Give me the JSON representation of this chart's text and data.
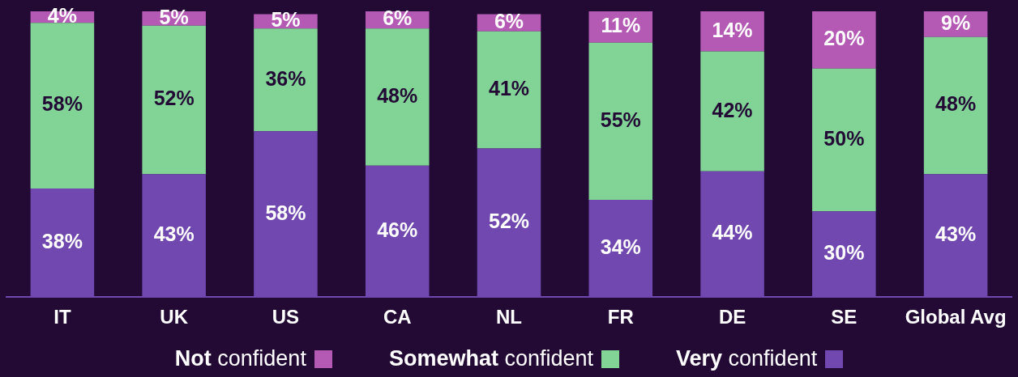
{
  "chart_data": {
    "type": "bar",
    "stacked": true,
    "categories": [
      "IT",
      "UK",
      "US",
      "CA",
      "NL",
      "FR",
      "DE",
      "SE",
      "Global Avg"
    ],
    "series": [
      {
        "name": "Very confident",
        "color": "#7048b0",
        "values": [
          38,
          43,
          58,
          46,
          52,
          34,
          44,
          30,
          43
        ],
        "value_labels": [
          "38%",
          "43%",
          "58%",
          "46%",
          "52%",
          "34%",
          "44%",
          "30%",
          "43%"
        ]
      },
      {
        "name": "Somewhat confident",
        "color": "#82d496",
        "values": [
          58,
          52,
          36,
          48,
          41,
          55,
          42,
          50,
          48
        ],
        "value_labels": [
          "58%",
          "52%",
          "36%",
          "48%",
          "41%",
          "55%",
          "42%",
          "50%",
          "48%"
        ]
      },
      {
        "name": "Not confident",
        "color": "#b45ab4",
        "values": [
          4,
          5,
          5,
          6,
          6,
          11,
          14,
          20,
          9
        ],
        "value_labels": [
          "4%",
          "5%",
          "5%",
          "6%",
          "6%",
          "11%",
          "14%",
          "20%",
          "9%"
        ]
      }
    ],
    "tick_labels": "x",
    "grid": false,
    "legend": "bottom"
  }
}
